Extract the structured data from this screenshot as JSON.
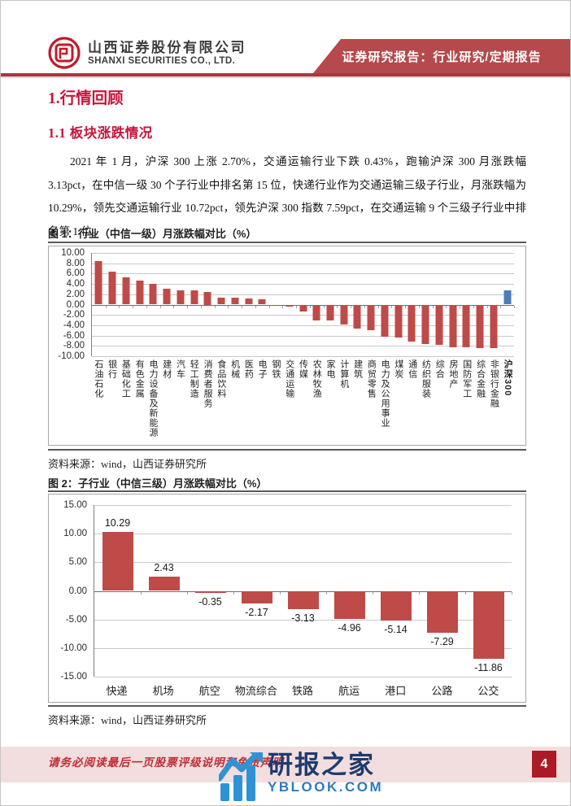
{
  "header": {
    "company_cn": "山西证券股份有限公司",
    "company_en": "SHANXI SECURITIES CO., LTD.",
    "banner": "证券研究报告：行业研究/定期报告"
  },
  "body": {
    "heading1": "1.行情回顾",
    "heading2": "1.1 板块涨跌情况",
    "paragraph": "2021 年 1 月，沪深 300 上涨 2.70%，交通运输行业下跌 0.43%，跑输沪深 300 月涨跌幅 3.13pct，在中信一级 30 个子行业中排名第 15 位，快递行业作为交通运输三级子行业，月涨跌幅为 10.29%，领先交通运输行业 10.72pct，领先沪深 300 指数 7.59pct，在交通运输 9 个三级子行业中排名第 1 位。"
  },
  "figure1": {
    "caption": "图 1：行业（中信一级）月涨跌幅对比（%）",
    "source": "资料来源：wind，山西证券研究所"
  },
  "figure2": {
    "caption": "图 2：子行业（中信三级）月涨跌幅对比（%）",
    "source": "资料来源：wind，山西证券研究所"
  },
  "footer": {
    "disclaimer": "请务必阅读最后一页股票评级说明和免责声明",
    "page_number": "4"
  },
  "watermark": {
    "title": "研报之家",
    "subtitle": "YBLOOK.COM"
  },
  "chart_data": [
    {
      "type": "bar",
      "title": "行业（中信一级）月涨跌幅对比（%）",
      "categories": [
        "石油石化",
        "银行",
        "基础化工",
        "有色金属",
        "电力设备及新能源",
        "建材",
        "汽车",
        "轻工制造",
        "消费者服务",
        "食品饮料",
        "机械",
        "医药",
        "电子",
        "钢铁",
        "交通运输",
        "传媒",
        "农林牧渔",
        "家电",
        "计算机",
        "建筑",
        "商贸零售",
        "电力及公用事业",
        "煤炭",
        "通信",
        "纺织服装",
        "综合",
        "房地产",
        "国防军工",
        "综合金融",
        "非银行金融",
        "沪深300"
      ],
      "values": [
        8.4,
        6.4,
        5.2,
        4.6,
        4.0,
        3.1,
        2.8,
        2.7,
        2.5,
        1.4,
        1.3,
        1.2,
        1.1,
        -0.2,
        -0.43,
        -1.3,
        -3.0,
        -3.0,
        -3.8,
        -4.6,
        -5.0,
        -6.2,
        -6.3,
        -7.2,
        -7.6,
        -7.8,
        -8.3,
        -8.3,
        -8.4,
        -8.5,
        2.7
      ],
      "ylim": [
        -10,
        10
      ],
      "ytick_step": 2,
      "grid": true,
      "legend": "none",
      "show_value_labels": false,
      "bar_color": "#be4b48",
      "highlight": {
        "category": "沪深300",
        "color": "#4b7dbb"
      }
    },
    {
      "type": "bar",
      "title": "子行业（中信三级）月涨跌幅对比（%）",
      "categories": [
        "快递",
        "机场",
        "航空",
        "物流综合",
        "铁路",
        "航运",
        "港口",
        "公路",
        "公交"
      ],
      "values": [
        10.29,
        2.43,
        -0.35,
        -2.17,
        -3.13,
        -4.96,
        -5.14,
        -7.29,
        -11.86
      ],
      "ylim": [
        -15,
        15
      ],
      "ytick_step": 5,
      "grid": true,
      "legend": "none",
      "show_value_labels": true,
      "bar_color": "#be4b48"
    }
  ]
}
